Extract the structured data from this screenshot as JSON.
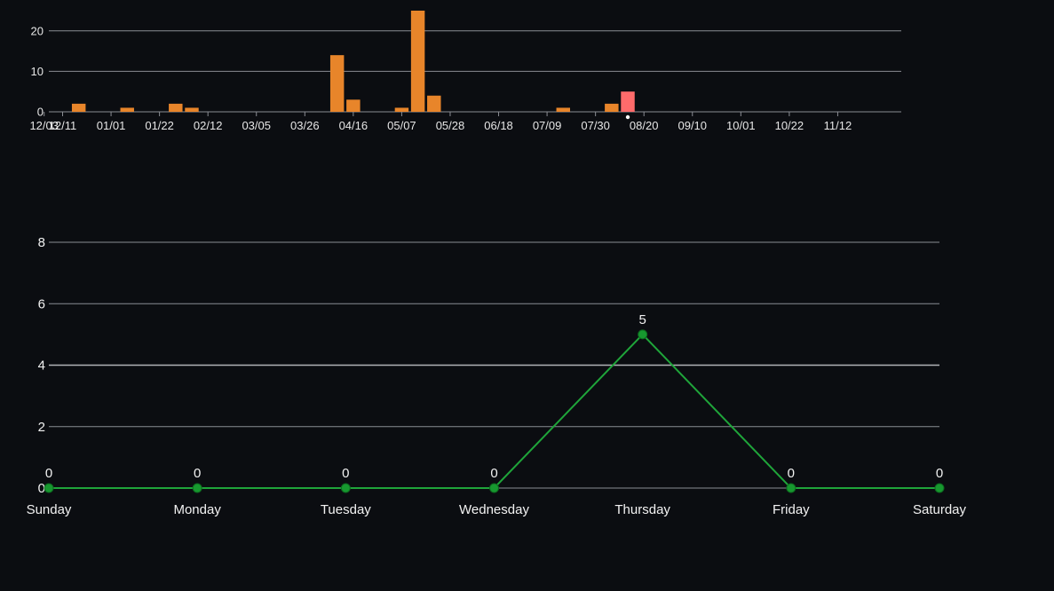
{
  "colors": {
    "background": "#0b0d11",
    "grid": "#8a8d93",
    "grid_strong": "#b2b4b8",
    "axis_text": "#e6e6e6",
    "bar": "#e8852a",
    "bar_highlight": "#ff6b6b",
    "line": "#1fa53a",
    "marker": "#17982f",
    "marker_edge": "#0d6a1f"
  },
  "chart_data": [
    {
      "type": "bar",
      "x_axis": "date",
      "x_ticks": [
        "12/11",
        "01/01",
        "01/22",
        "02/12",
        "03/05",
        "03/26",
        "04/16",
        "05/07",
        "05/28",
        "06/18",
        "07/09",
        "07/30",
        "08/20",
        "09/10",
        "10/01",
        "10/22",
        "11/12",
        "12/03"
      ],
      "y_ticks": [
        0,
        10,
        20
      ],
      "ylim": [
        0,
        25
      ],
      "grid": true,
      "bars": [
        {
          "week": "12/18",
          "value": 2
        },
        {
          "week": "01/08",
          "value": 1
        },
        {
          "week": "01/29",
          "value": 2
        },
        {
          "week": "02/05",
          "value": 1
        },
        {
          "week": "04/09",
          "value": 14
        },
        {
          "week": "04/16",
          "value": 3
        },
        {
          "week": "05/07",
          "value": 1
        },
        {
          "week": "05/14",
          "value": 25
        },
        {
          "week": "05/21",
          "value": 4
        },
        {
          "week": "07/16",
          "value": 1
        },
        {
          "week": "08/06",
          "value": 2
        },
        {
          "week": "08/13",
          "value": 5,
          "highlighted": true
        }
      ],
      "selected_marker_week": "08/13"
    },
    {
      "type": "line",
      "categories": [
        "Sunday",
        "Monday",
        "Tuesday",
        "Wednesday",
        "Thursday",
        "Friday",
        "Saturday"
      ],
      "values": [
        0,
        0,
        0,
        0,
        5,
        0,
        0
      ],
      "point_labels": [
        "0",
        "0",
        "0",
        "0",
        "5",
        "0",
        "0"
      ],
      "y_ticks": [
        0,
        2,
        4,
        6,
        8
      ],
      "ylim": [
        0,
        8
      ],
      "grid": true
    }
  ]
}
